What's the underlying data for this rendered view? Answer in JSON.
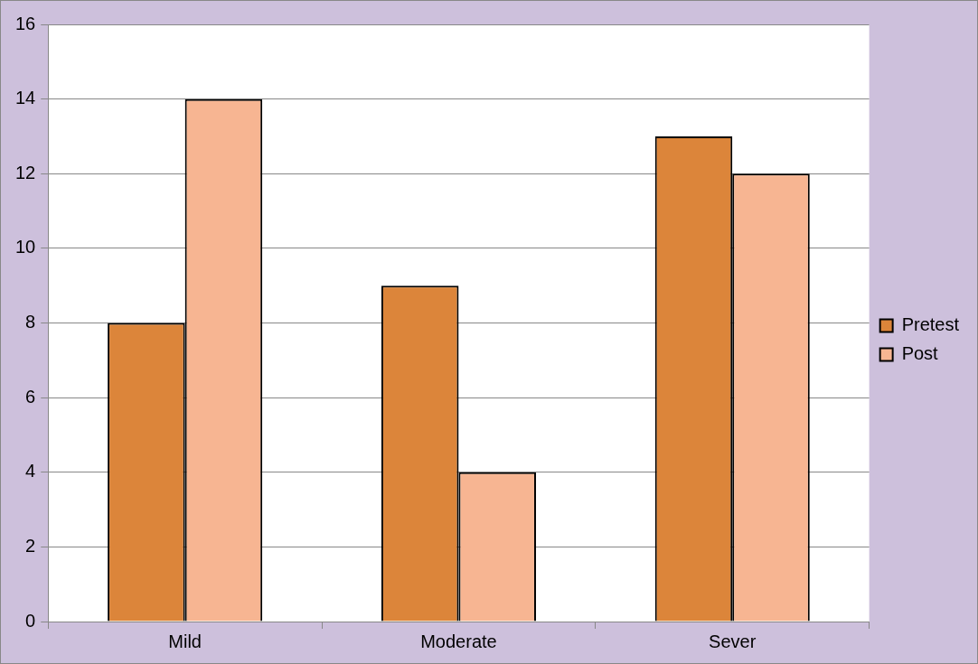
{
  "chart_data": {
    "type": "bar",
    "categories": [
      "Mild",
      "Moderate",
      "Sever"
    ],
    "series": [
      {
        "name": "Pretest",
        "color": "#dc853a",
        "values": [
          8,
          9,
          13
        ]
      },
      {
        "name": "Post",
        "color": "#f7b592",
        "values": [
          14,
          4,
          12
        ]
      }
    ],
    "ylim": [
      0,
      16
    ],
    "yticks": [
      0,
      2,
      4,
      6,
      8,
      10,
      12,
      14,
      16
    ],
    "grid": "y",
    "legend": "right"
  }
}
